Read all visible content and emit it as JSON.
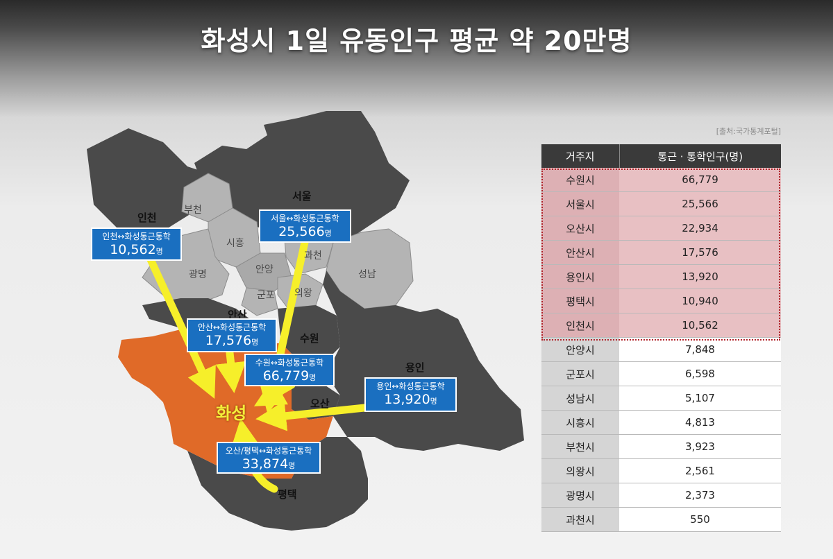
{
  "title": "화성시 1일 유동인구 평균 약 20만명",
  "source": "[출처:국가통계포털]",
  "table": {
    "headers": [
      "거주지",
      "통근 · 통학인구(명)"
    ],
    "rows": [
      {
        "city": "수원시",
        "value": "66,779",
        "highlight": true
      },
      {
        "city": "서울시",
        "value": "25,566",
        "highlight": true
      },
      {
        "city": "오산시",
        "value": "22,934",
        "highlight": true
      },
      {
        "city": "안산시",
        "value": "17,576",
        "highlight": true
      },
      {
        "city": "용인시",
        "value": "13,920",
        "highlight": true
      },
      {
        "city": "평택시",
        "value": "10,940",
        "highlight": true
      },
      {
        "city": "인천시",
        "value": "10,562",
        "highlight": true
      },
      {
        "city": "안양시",
        "value": "7,848",
        "highlight": false
      },
      {
        "city": "군포시",
        "value": "6,598",
        "highlight": false
      },
      {
        "city": "성남시",
        "value": "5,107",
        "highlight": false
      },
      {
        "city": "시흥시",
        "value": "4,813",
        "highlight": false
      },
      {
        "city": "부천시",
        "value": "3,923",
        "highlight": false
      },
      {
        "city": "의왕시",
        "value": "2,561",
        "highlight": false
      },
      {
        "city": "광명시",
        "value": "2,373",
        "highlight": false
      },
      {
        "city": "과천시",
        "value": "550",
        "highlight": false
      }
    ]
  },
  "map": {
    "center": "화성",
    "cities": {
      "incheon": "인천",
      "seoul": "서울",
      "ansan": "안산",
      "suwon": "수원",
      "yongin": "용인",
      "osan": "오산",
      "pyeongtaek": "평택"
    },
    "municipalities": {
      "bucheon": "부천",
      "siheung": "시흥",
      "gwangmyeong": "광명",
      "anyang": "안양",
      "gwacheon": "과천",
      "gunpo": "군포",
      "uiwang": "의왕",
      "seongnam": "성남"
    },
    "boxes": {
      "incheon": {
        "title": "인천↔화성통근통학",
        "value": "10,562",
        "unit": "명"
      },
      "seoul": {
        "title": "서울↔화성통근통학",
        "value": "25,566",
        "unit": "명"
      },
      "ansan": {
        "title": "안산↔화성통근통학",
        "value": "17,576",
        "unit": "명"
      },
      "suwon": {
        "title": "수원↔화성통근통학",
        "value": "66,779",
        "unit": "명"
      },
      "yongin": {
        "title": "용인↔화성통근통학",
        "value": "13,920",
        "unit": "명"
      },
      "osan_pyeongtaek": {
        "title": "오산/평택↔화성통근통학",
        "value": "33,874",
        "unit": "명"
      }
    },
    "colors": {
      "hwaseong": "#e06a28",
      "dark_region": "#4a4a4a",
      "light_region": "#b4b4b4",
      "arrow": "#f6ef2a",
      "box": "#1a6fc0"
    }
  }
}
